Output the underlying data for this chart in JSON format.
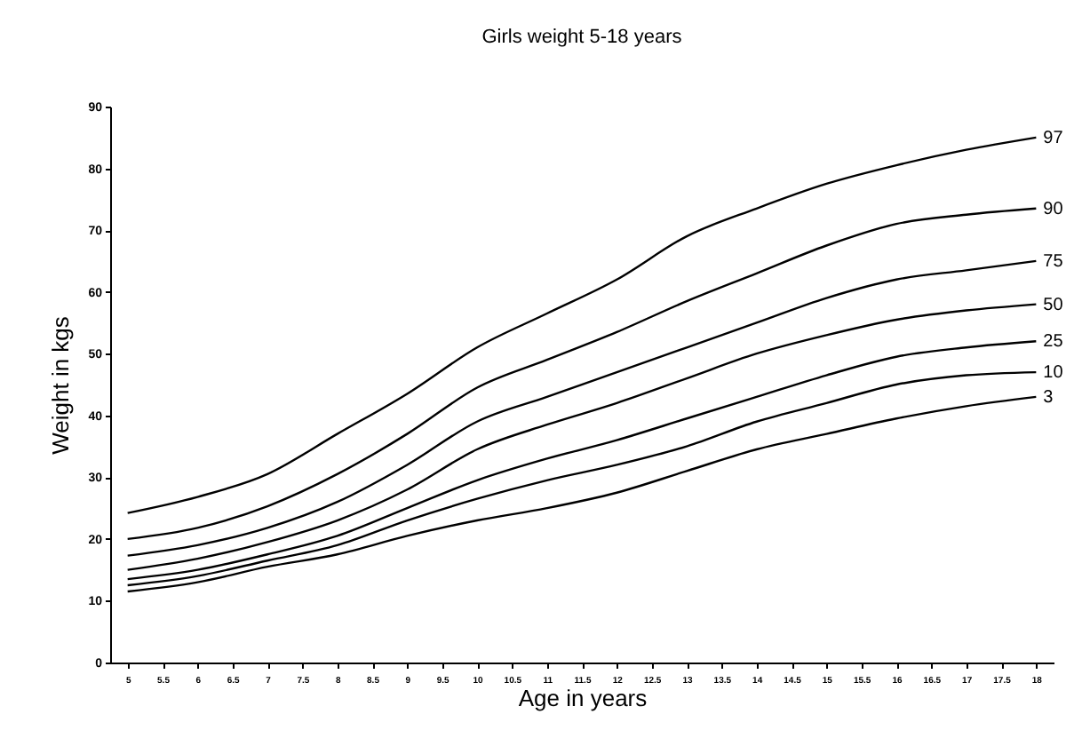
{
  "chart_data": {
    "type": "line",
    "title": "Girls weight 5-18 years",
    "xlabel": "Age in years",
    "ylabel": "Weight in kgs",
    "x": [
      5,
      6,
      7,
      8,
      9,
      10,
      11,
      12,
      13,
      14,
      15,
      16,
      17,
      18
    ],
    "series": [
      {
        "name": "97",
        "color": "#000000",
        "values": [
          24.2,
          26.8,
          30.5,
          37,
          43.5,
          51,
          56.5,
          62,
          69,
          73.5,
          77.5,
          80.5,
          83,
          85
        ]
      },
      {
        "name": "90",
        "color": "#000000",
        "values": [
          20,
          21.8,
          25.3,
          30.5,
          37,
          44.5,
          49,
          53.5,
          58.5,
          63,
          67.5,
          71,
          72.5,
          73.5
        ]
      },
      {
        "name": "75",
        "color": "#000000",
        "values": [
          17.3,
          19,
          21.8,
          26,
          32,
          39,
          43,
          47,
          51,
          55,
          59,
          62,
          63.5,
          65
        ]
      },
      {
        "name": "50",
        "color": "#000000",
        "values": [
          15,
          16.8,
          19.5,
          23,
          28,
          34.5,
          38.5,
          42,
          46,
          50,
          53,
          55.5,
          57,
          58
        ]
      },
      {
        "name": "25",
        "color": "#000000",
        "values": [
          13.5,
          15,
          17.5,
          20.5,
          25,
          29.5,
          33,
          36,
          39.5,
          43,
          46.5,
          49.5,
          51,
          52
        ]
      },
      {
        "name": "10",
        "color": "#000000",
        "values": [
          12.5,
          14,
          16.5,
          19,
          23,
          26.5,
          29.5,
          32,
          35,
          39,
          42,
          45,
          46.5,
          47
        ]
      },
      {
        "name": "3",
        "color": "#000000",
        "values": [
          11.5,
          13,
          15.5,
          17.5,
          20.5,
          23,
          25,
          27.5,
          31,
          34.5,
          37,
          39.5,
          41.5,
          43
        ]
      }
    ],
    "xlim": [
      4.75,
      18.25
    ],
    "xticks": [
      5,
      5.5,
      6,
      6.5,
      7,
      7.5,
      8,
      8.5,
      9,
      9.5,
      10,
      10.5,
      11,
      11.5,
      12,
      12.5,
      13,
      13.5,
      14,
      14.5,
      15,
      15.5,
      16,
      16.5,
      17,
      17.5,
      18
    ],
    "ylim": [
      0,
      90
    ],
    "yticks": [
      0,
      10,
      20,
      30,
      40,
      50,
      60,
      70,
      80,
      90
    ],
    "grid": false,
    "legend": false,
    "marker": "none",
    "line_style": "solid"
  }
}
